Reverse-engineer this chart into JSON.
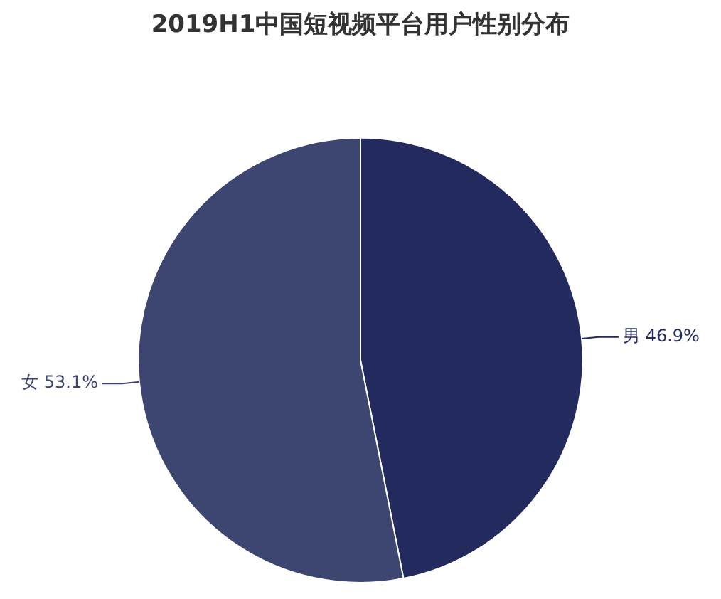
{
  "chart_data": {
    "type": "pie",
    "title": "2019H1中国短视频平台用户性别分布",
    "categories": [
      "男",
      "女"
    ],
    "values": [
      46.9,
      53.1
    ],
    "colors": [
      "#222a5e",
      "#3d4571"
    ],
    "value_labels": [
      "46.9%",
      "53.1%"
    ],
    "legend": false
  }
}
